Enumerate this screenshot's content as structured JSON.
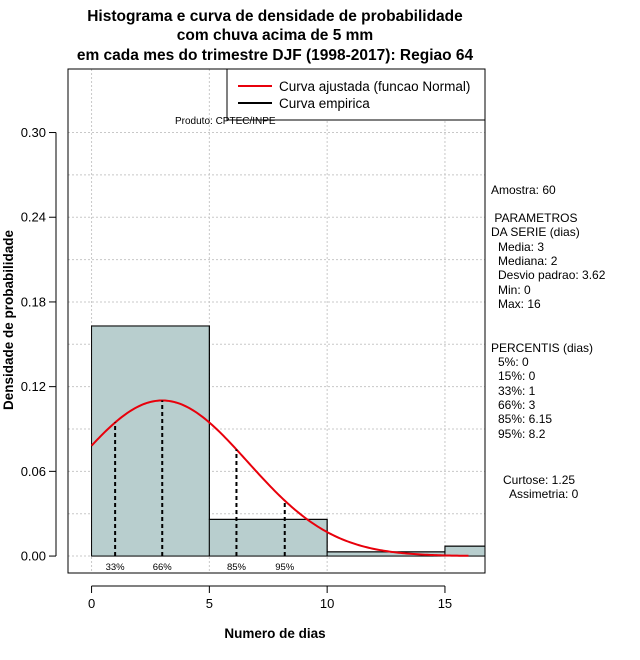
{
  "chart_data": {
    "type": "bar",
    "title_lines": [
      "Histograma e curva de densidade de probabilidade",
      "com chuva acima de 5 mm",
      "em cada mes do trimestre DJF (1998-2017): Regiao 64"
    ],
    "xlabel": "Numero de dias",
    "ylabel": "Densidade de probabilidade",
    "xlim": [
      -1,
      16.7
    ],
    "ylim": [
      -0.012,
      0.345
    ],
    "x_ticks": [
      0,
      5,
      10,
      15
    ],
    "y_ticks": [
      0.0,
      0.06,
      0.12,
      0.18,
      0.24,
      0.3
    ],
    "y_tick_labels": [
      "0.00",
      "0.06",
      "0.12",
      "0.18",
      "0.24",
      "0.30"
    ],
    "grid": true,
    "bins": [
      {
        "start": 0,
        "end": 5,
        "density": 0.163
      },
      {
        "start": 5,
        "end": 10,
        "density": 0.026
      },
      {
        "start": 10,
        "end": 15,
        "density": 0.003
      },
      {
        "start": 15,
        "end": 20,
        "density": 0.007
      }
    ],
    "fitted_curve": {
      "name": "Curva ajustada (funcao Normal)",
      "mean": 3,
      "sd": 3.62,
      "x_range": [
        0,
        16
      ],
      "color": "#e8000b"
    },
    "empirical_curve": {
      "name": "Curva empirica",
      "color": "#000000"
    },
    "percentile_markers": [
      {
        "label": "33%",
        "x": 1
      },
      {
        "label": "66%",
        "x": 3
      },
      {
        "label": "85%",
        "x": 6.15
      },
      {
        "label": "95%",
        "x": 8.2
      }
    ],
    "legend_position": "top-right",
    "bar_color": "#b8cece"
  },
  "product_label": "Produto: CPTEC/INPE",
  "stats": {
    "sample": "Amostra: 60",
    "params_title_1": " PARAMETROS",
    "params_title_2": "DA SERIE (dias)",
    "params": [
      "Media: 3",
      "Mediana: 2",
      "Desvio padrao: 3.62",
      "Min: 0",
      "Max: 16"
    ],
    "percentis_title": "PERCENTIS (dias)",
    "percentis": [
      "5%: 0",
      "15%: 0",
      "33%: 1",
      "66%: 3",
      "85%: 6.15",
      "95%: 8.2"
    ],
    "curtose": "Curtose: 1.25",
    "assimetria": "Assimetria: 0"
  }
}
